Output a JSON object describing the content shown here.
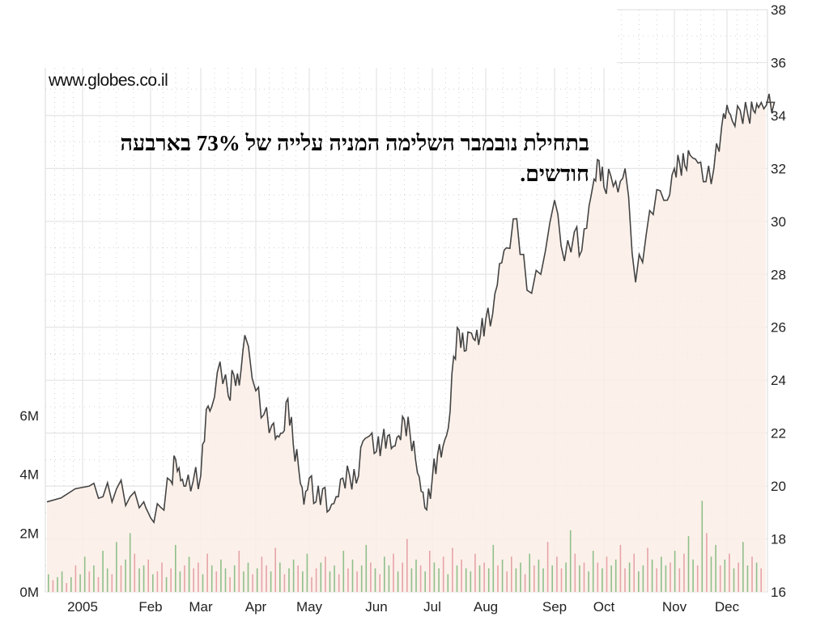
{
  "watermark": "www.globes.co.il",
  "annotation": "בתחילת נובמבר השלימה המניה עלייה של 73% בארבעה חודשים.",
  "colors": {
    "price_line": "#444444",
    "price_fill": "#fbeee6",
    "volume_up": "#8fbf8a",
    "volume_down": "#e6a3a8",
    "grid": "#e4e4e4",
    "grid_dots": "#c8c8c8"
  },
  "chart_data": {
    "type": "area",
    "title": "",
    "xlabel": "",
    "ylabel": "",
    "x_tick_labels": [
      "2005",
      "Feb",
      "Mar",
      "Apr",
      "May",
      "Jun",
      "Jul",
      "Aug",
      "Sep",
      "Oct",
      "Nov",
      "Dec"
    ],
    "y_price": {
      "ticks": [
        16,
        18,
        20,
        22,
        24,
        26,
        28,
        30,
        32,
        34,
        36,
        38
      ],
      "range": [
        16,
        38
      ],
      "side": "right"
    },
    "y_volume": {
      "ticks": [
        "0M",
        "2M",
        "4M",
        "6M"
      ],
      "tick_values": [
        0,
        2,
        4,
        6
      ],
      "range": [
        0,
        6
      ],
      "side": "left"
    },
    "grid": true,
    "price_series": {
      "name": "",
      "x_month": [
        0,
        0.1,
        0.3,
        0.5,
        0.7,
        0.9,
        1.0,
        1.2,
        1.4,
        1.5,
        1.6,
        1.7,
        1.85,
        2.0,
        2.1,
        2.2,
        2.35,
        2.5,
        2.6,
        2.7,
        2.8,
        3.0,
        3.15,
        3.3,
        3.4,
        3.5,
        3.6,
        3.7,
        3.8,
        3.9,
        4.0,
        4.1,
        4.2,
        4.3,
        4.4,
        4.5,
        4.6,
        4.7,
        4.8,
        4.9,
        5.0,
        5.1,
        5.2,
        5.3,
        5.4,
        5.5,
        5.6,
        5.7,
        5.8,
        5.9,
        6.0,
        6.1,
        6.2,
        6.3,
        6.4,
        6.5,
        6.6,
        6.7,
        6.8,
        6.9,
        7.0,
        7.1,
        7.2,
        7.3,
        7.45,
        7.6,
        7.8,
        8.0,
        8.2,
        8.4,
        8.55,
        8.7,
        8.8,
        8.9,
        9.0,
        9.1,
        9.2,
        9.3,
        9.45,
        9.6,
        9.75,
        9.9,
        10.0,
        10.1,
        10.2,
        10.3,
        10.45,
        10.6,
        10.75,
        10.9,
        11.0,
        11.1,
        11.25,
        11.4,
        11.5,
        11.6,
        11.75,
        11.9
      ],
      "price": [
        19.4,
        20.0,
        19.6,
        19.9,
        19.6,
        19.4,
        18.8,
        19.2,
        20.2,
        21.0,
        20.2,
        20.0,
        20.2,
        20.4,
        22.9,
        23.0,
        24.7,
        23.4,
        24.2,
        23.8,
        25.7,
        23.6,
        22.7,
        22.3,
        21.9,
        22.0,
        23.3,
        21.6,
        20.7,
        19.3,
        20.3,
        19.4,
        19.9,
        19.1,
        19.6,
        20.3,
        20.4,
        20.1,
        21.7,
        21.9,
        21.3,
        21.7,
        21.9,
        21.5,
        21.9,
        22.5,
        22.0,
        21.0,
        19.8,
        19.1,
        20.3,
        21.2,
        21.5,
        22.2,
        24.9,
        25.9,
        25.1,
        25.8,
        25.5,
        25.7,
        26.3,
        26.5,
        28.4,
        29.0,
        30.1,
        27.4,
        28.0,
        30.8,
        28.5,
        29.6,
        28.9,
        30.6,
        31.6,
        32.3,
        31.3,
        31.7,
        31.1,
        32.0,
        27.7,
        29.5,
        31.2,
        30.8,
        32.0,
        32.2,
        32.1,
        32.5,
        32.2,
        31.5,
        32.0,
        33.6,
        34.4,
        33.8,
        34.2,
        34.0,
        34.2,
        34.3,
        34.4,
        34.5
      ]
    },
    "volume_series": {
      "name": "",
      "values_M": [
        0.6,
        0.4,
        0.5,
        0.7,
        0.3,
        0.5,
        0.9,
        0.6,
        1.2,
        0.7,
        0.9,
        0.5,
        1.4,
        0.8,
        0.6,
        1.7,
        0.9,
        1.1,
        2.0,
        1.3,
        0.8,
        0.9,
        1.1,
        0.6,
        0.7,
        1.0,
        0.5,
        0.8,
        1.6,
        0.7,
        0.9,
        1.2,
        0.8,
        1.0,
        0.6,
        1.3,
        0.9,
        0.7,
        1.1,
        0.8,
        0.5,
        0.9,
        1.4,
        0.7,
        1.0,
        0.6,
        0.8,
        1.2,
        0.9,
        0.7,
        1.5,
        1.0,
        0.6,
        0.8,
        1.1,
        0.9,
        0.7,
        1.3,
        0.5,
        0.8,
        1.0,
        1.2,
        0.7,
        0.9,
        0.6,
        1.4,
        0.8,
        1.1,
        0.7,
        0.9,
        1.6,
        1.0,
        0.8,
        0.6,
        1.2,
        0.9,
        1.3,
        0.7,
        1.0,
        1.8,
        0.8,
        1.1,
        0.9,
        0.7,
        1.4,
        1.0,
        0.8,
        1.2,
        0.6,
        1.5,
        0.9,
        1.1,
        0.8,
        0.7,
        1.3,
        0.9,
        1.0,
        0.8,
        1.6,
        0.9,
        1.1,
        0.7,
        1.2,
        0.8,
        1.0,
        0.6,
        1.3,
        0.9,
        1.1,
        0.8,
        1.7,
        0.9,
        1.2,
        0.8,
        1.0,
        2.1,
        1.3,
        0.9,
        1.0,
        0.7,
        1.4,
        1.0,
        0.8,
        1.2,
        0.9,
        1.1,
        1.6,
        0.8,
        1.0,
        1.3,
        0.7,
        0.9,
        1.5,
        1.1,
        0.8,
        1.2,
        0.9,
        1.0,
        1.4,
        0.8,
        1.3,
        1.9,
        1.1,
        0.9,
        3.1,
        2.0,
        1.2,
        1.6,
        0.9,
        1.1,
        1.3,
        0.8,
        1.0,
        1.7,
        0.9,
        1.2,
        1.0,
        0.8
      ],
      "up_flags": [
        1,
        0,
        1,
        1,
        0,
        1,
        0,
        1,
        1,
        0,
        1,
        0,
        1,
        1,
        0,
        1,
        0,
        1,
        1,
        0,
        1,
        1,
        0,
        1,
        0,
        0,
        1,
        0,
        1,
        1,
        0,
        1,
        0,
        0,
        1,
        0,
        1,
        0,
        1,
        1,
        0,
        1,
        0,
        1,
        1,
        0,
        1,
        0,
        0,
        1,
        0,
        1,
        0,
        1,
        1,
        0,
        1,
        1,
        0,
        0,
        1,
        0,
        1,
        1,
        0,
        1,
        0,
        1,
        0,
        1,
        1,
        0,
        1,
        0,
        1,
        1,
        0,
        1,
        0,
        0,
        1,
        1,
        0,
        1,
        0,
        1,
        1,
        0,
        1,
        0,
        1,
        0,
        1,
        1,
        0,
        1,
        0,
        1,
        1,
        0,
        1,
        0,
        0,
        1,
        1,
        0,
        1,
        0,
        1,
        1,
        0,
        1,
        0,
        0,
        1,
        1,
        0,
        1,
        0,
        1,
        1,
        0,
        1,
        0,
        1,
        1,
        0,
        0,
        1,
        0,
        1,
        1,
        0,
        1,
        0,
        1,
        1,
        0,
        1,
        0,
        0,
        1,
        1,
        0,
        1,
        0,
        1,
        1,
        0,
        1,
        0,
        1,
        0,
        1,
        1,
        0,
        1,
        0
      ]
    }
  }
}
